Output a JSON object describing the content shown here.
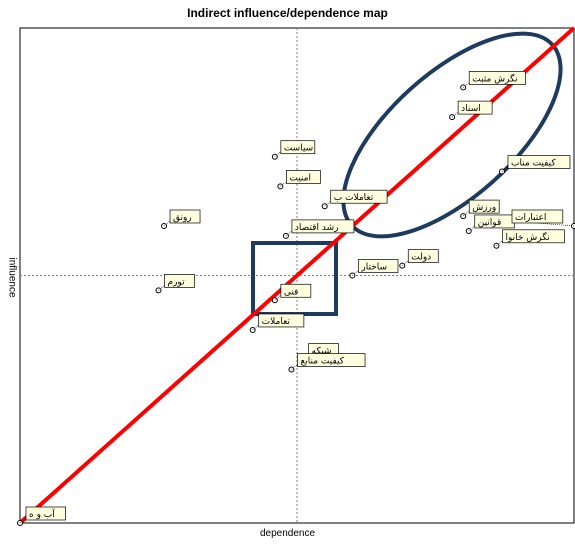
{
  "chart_data": {
    "type": "scatter",
    "title": "Indirect influence/dependence map",
    "xlabel": "dependence",
    "ylabel": "influence",
    "xlim": [
      0,
      100
    ],
    "ylim": [
      0,
      100
    ],
    "center_lines": {
      "x": 50,
      "y": 50
    },
    "points": [
      {
        "label": "نگرش مثبت",
        "x": 80,
        "y": 88
      },
      {
        "label": "اسناد",
        "x": 78,
        "y": 82
      },
      {
        "label": "سیاست",
        "x": 46,
        "y": 74
      },
      {
        "label": "کیفیت مناب",
        "x": 87,
        "y": 71
      },
      {
        "label": "امنیت",
        "x": 47,
        "y": 68
      },
      {
        "label": "تعاملات ب",
        "x": 55,
        "y": 64
      },
      {
        "label": "ورزش",
        "x": 80,
        "y": 62
      },
      {
        "label": "رونق",
        "x": 26,
        "y": 60
      },
      {
        "label": "قوانین",
        "x": 81,
        "y": 59
      },
      {
        "label": "رشد اقتصاد",
        "x": 48,
        "y": 58
      },
      {
        "label": "اعتبارات",
        "x": 100,
        "y": 60
      },
      {
        "label": "نگرش خانوا",
        "x": 86,
        "y": 56
      },
      {
        "label": "دولت",
        "x": 69,
        "y": 52
      },
      {
        "label": "تورم",
        "x": 25,
        "y": 47
      },
      {
        "label": "ساختار",
        "x": 60,
        "y": 50
      },
      {
        "label": "فنی",
        "x": 46,
        "y": 45
      },
      {
        "label": "تعاملات",
        "x": 42,
        "y": 39
      },
      {
        "label": "شبکه",
        "x": 51,
        "y": 33
      },
      {
        "label": "کیفیت منابع",
        "x": 49,
        "y": 31
      },
      {
        "label": "آب و ه",
        "x": 0,
        "y": 0
      }
    ],
    "annotations": [
      {
        "type": "line",
        "color": "#ff0000",
        "from": [
          0,
          0
        ],
        "to": [
          100,
          100
        ]
      },
      {
        "type": "ellipse",
        "color": "#1f3a5f"
      },
      {
        "type": "rectangle",
        "color": "#1f3a5f"
      }
    ],
    "colors": {
      "diagonal": "#ff0000",
      "ellipse": "#1f3a5f",
      "rectangle": "#1f3a5f",
      "label_bg": "#ffffe0"
    }
  }
}
